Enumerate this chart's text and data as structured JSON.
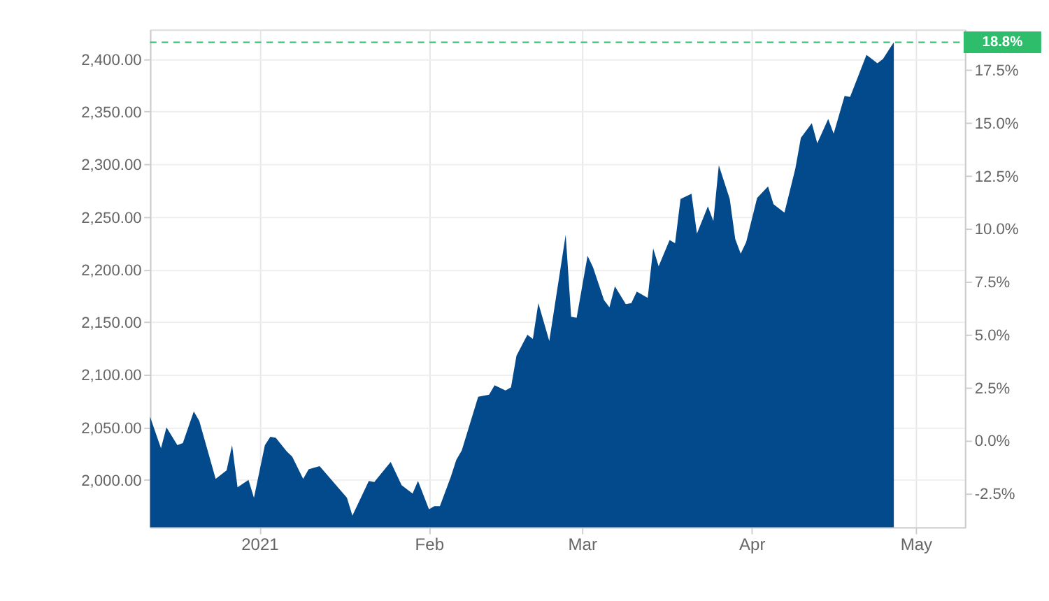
{
  "chart_data": {
    "type": "area",
    "x": [
      "2020-12-12",
      "2020-12-14",
      "2020-12-15",
      "2020-12-17",
      "2020-12-18",
      "2020-12-20",
      "2020-12-21",
      "2020-12-24",
      "2020-12-26",
      "2020-12-27",
      "2020-12-28",
      "2020-12-30",
      "2020-12-31",
      "2021-01-02",
      "2021-01-03",
      "2021-01-04",
      "2021-01-06",
      "2021-01-07",
      "2021-01-09",
      "2021-01-10",
      "2021-01-12",
      "2021-01-13",
      "2021-01-17",
      "2021-01-18",
      "2021-01-21",
      "2021-01-22",
      "2021-01-25",
      "2021-01-27",
      "2021-01-29",
      "2021-01-30",
      "2021-02-01",
      "2021-02-02",
      "2021-02-03",
      "2021-02-05",
      "2021-02-06",
      "2021-02-07",
      "2021-02-10",
      "2021-02-12",
      "2021-02-13",
      "2021-02-15",
      "2021-02-16",
      "2021-02-17",
      "2021-02-19",
      "2021-02-20",
      "2021-02-21",
      "2021-02-23",
      "2021-02-26",
      "2021-02-27",
      "2021-02-28",
      "2021-03-02",
      "2021-03-03",
      "2021-03-05",
      "2021-03-06",
      "2021-03-07",
      "2021-03-09",
      "2021-03-10",
      "2021-03-11",
      "2021-03-13",
      "2021-03-14",
      "2021-03-15",
      "2021-03-17",
      "2021-03-18",
      "2021-03-19",
      "2021-03-21",
      "2021-03-22",
      "2021-03-24",
      "2021-03-25",
      "2021-03-26",
      "2021-03-28",
      "2021-03-29",
      "2021-03-30",
      "2021-03-31",
      "2021-04-02",
      "2021-04-04",
      "2021-04-05",
      "2021-04-07",
      "2021-04-09",
      "2021-04-10",
      "2021-04-12",
      "2021-04-13",
      "2021-04-15",
      "2021-04-16",
      "2021-04-18",
      "2021-04-19",
      "2021-04-22",
      "2021-04-24",
      "2021-04-25",
      "2021-04-27"
    ],
    "series": [
      {
        "color": "#034a8c",
        "values": [
          2060,
          2030,
          2050,
          2033,
          2035,
          2065,
          2056,
          2001,
          2009,
          2033,
          1993,
          2000,
          1983,
          2033,
          2041,
          2040,
          2027,
          2022,
          2001,
          2010,
          2013,
          2007,
          1983,
          1966,
          1999,
          1998,
          2017,
          1995,
          1987,
          1999,
          1972,
          1975,
          1975,
          2003,
          2019,
          2028,
          2079,
          2081,
          2090,
          2085,
          2088,
          2118,
          2138,
          2134,
          2168,
          2132,
          2233,
          2155,
          2154,
          2213,
          2202,
          2171,
          2164,
          2184,
          2167,
          2168,
          2179,
          2173,
          2220,
          2203,
          2228,
          2225,
          2267,
          2272,
          2234,
          2260,
          2246,
          2299,
          2267,
          2229,
          2215,
          2226,
          2268,
          2279,
          2262,
          2254,
          2296,
          2325,
          2339,
          2320,
          2343,
          2329,
          2365,
          2364,
          2404,
          2396,
          2400,
          2416
        ]
      }
    ],
    "xlim": [
      "2020-12-12",
      "2021-05-10"
    ],
    "xticks": [
      {
        "value": "2021-01-01",
        "label": "2021"
      },
      {
        "value": "2021-02-01",
        "label": "Feb"
      },
      {
        "value": "2021-03-01",
        "label": "Mar"
      },
      {
        "value": "2021-04-01",
        "label": "Apr"
      },
      {
        "value": "2021-05-01",
        "label": "May"
      }
    ],
    "ylim": [
      1955,
      2428
    ],
    "yticks": [
      {
        "value": 2000,
        "label": "2,000.00"
      },
      {
        "value": 2050,
        "label": "2,050.00"
      },
      {
        "value": 2100,
        "label": "2,100.00"
      },
      {
        "value": 2150,
        "label": "2,150.00"
      },
      {
        "value": 2200,
        "label": "2,200.00"
      },
      {
        "value": 2250,
        "label": "2,250.00"
      },
      {
        "value": 2300,
        "label": "2,300.00"
      },
      {
        "value": 2350,
        "label": "2,350.00"
      },
      {
        "value": 2400,
        "label": "2,400.00"
      }
    ],
    "y2lim": [
      -4.1,
      19.4
    ],
    "y2ticks": [
      {
        "value": -2.5,
        "label": "-2.5%"
      },
      {
        "value": 0,
        "label": "0.0%"
      },
      {
        "value": 2.5,
        "label": "2.5%"
      },
      {
        "value": 5,
        "label": "5.0%"
      },
      {
        "value": 7.5,
        "label": "7.5%"
      },
      {
        "value": 10,
        "label": "10.0%"
      },
      {
        "value": 12.5,
        "label": "12.5%"
      },
      {
        "value": 15,
        "label": "15.0%"
      },
      {
        "value": 17.5,
        "label": "17.5%"
      }
    ],
    "ref_lines": [
      {
        "axis": "y2",
        "value": 18.8,
        "label": "18.8%",
        "color": "#2ebd6b",
        "line_style": "dashed"
      }
    ],
    "grid": true
  }
}
